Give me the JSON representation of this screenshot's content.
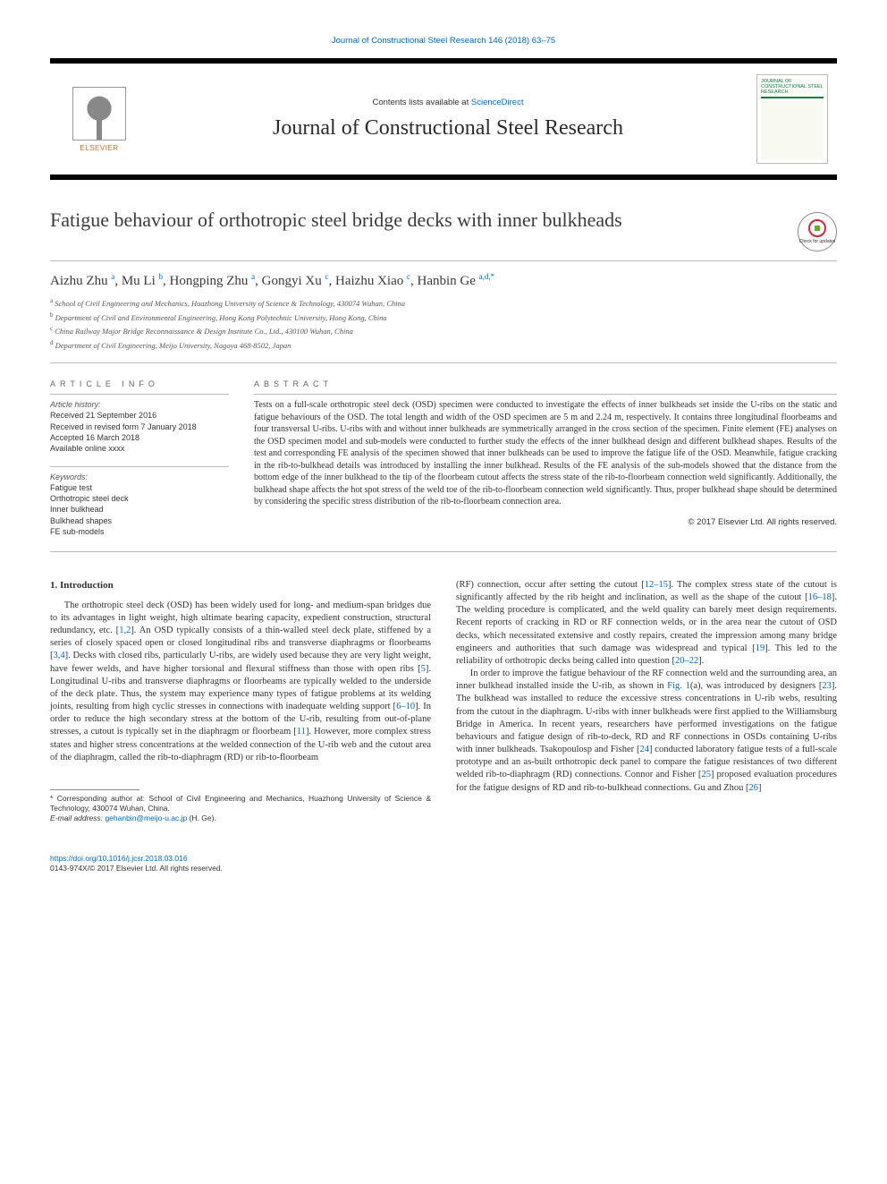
{
  "header": {
    "top_link": "Journal of Constructional Steel Research 146 (2018) 63–75",
    "contents_prefix": "Contents lists available at ",
    "contents_link": "ScienceDirect",
    "journal_name": "Journal of Constructional Steel Research",
    "publisher_label": "ELSEVIER",
    "cover_title": "JOURNAL OF CONSTRUCTIONAL STEEL RESEARCH",
    "check_updates": "Check for updates"
  },
  "article": {
    "title": "Fatigue behaviour of orthotropic steel bridge decks with inner bulkheads",
    "authors_html": "Aizhu Zhu <sup>a</sup>, Mu Li <sup>b</sup>, Hongping Zhu <sup>a</sup>, Gongyi Xu <sup>c</sup>, Haizhu Xiao <sup>c</sup>, Hanbin Ge <sup>a,d,*</sup>",
    "affiliations": [
      {
        "sup": "a",
        "text": "School of Civil Engineering and Mechanics, Huazhong University of Science & Technology, 430074 Wuhan, China"
      },
      {
        "sup": "b",
        "text": "Department of Civil and Environmental Engineering, Hong Kong Polytechnic University, Hong Kong, China"
      },
      {
        "sup": "c",
        "text": "China Railway Major Bridge Reconnaissance & Design Institute Co., Ltd., 430100 Wuhan, China"
      },
      {
        "sup": "d",
        "text": "Department of Civil Engineering, Meijo University, Nagoya 468-8502, Japan"
      }
    ]
  },
  "meta": {
    "info_heading": "article info",
    "history_label": "Article history:",
    "history": [
      "Received 21 September 2016",
      "Received in revised form 7 January 2018",
      "Accepted 16 March 2018",
      "Available online xxxx"
    ],
    "keywords_label": "Keywords:",
    "keywords": [
      "Fatigue test",
      "Orthotropic steel deck",
      "Inner bulkhead",
      "Bulkhead shapes",
      "FE sub-models"
    ]
  },
  "abstract": {
    "heading": "abstract",
    "body": "Tests on a full-scale orthotropic steel deck (OSD) specimen were conducted to investigate the effects of inner bulkheads set inside the U-ribs on the static and fatigue behaviours of the OSD. The total length and width of the OSD specimen are 5 m and 2.24 m, respectively. It contains three longitudinal floorbeams and four transversal U-ribs. U-ribs with and without inner bulkheads are symmetrically arranged in the cross section of the specimen. Finite element (FE) analyses on the OSD specimen model and sub-models were conducted to further study the effects of the inner bulkhead design and different bulkhead shapes. Results of the test and corresponding FE analysis of the specimen showed that inner bulkheads can be used to improve the fatigue life of the OSD. Meanwhile, fatigue cracking in the rib-to-bulkhead details was introduced by installing the inner bulkhead. Results of the FE analysis of the sub-models showed that the distance from the bottom edge of the inner bulkhead to the tip of the floorbeam cutout affects the stress state of the rib-to-floorbeam connection weld significantly. Additionally, the bulkhead shape affects the hot spot stress of the weld toe of the rib-to-floorbeam connection weld significantly. Thus, proper bulkhead shape should be determined by considering the specific stress distribution of the rib-to-floorbeam connection area.",
    "copyright": "© 2017 Elsevier Ltd. All rights reserved."
  },
  "intro": {
    "heading": "1. Introduction",
    "para1": "The orthotropic steel deck (OSD) has been widely used for long- and medium-span bridges due to its advantages in light weight, high ultimate bearing capacity, expedient construction, structural redundancy, etc. [1,2]. An OSD typically consists of a thin-walled steel deck plate, stiffened by a series of closely spaced open or closed longitudinal ribs and transverse diaphragms or floorbeams [3,4]. Decks with closed ribs, particularly U-ribs, are widely used because they are very light weight, have fewer welds, and have higher torsional and flexural stiffness than those with open ribs [5]. Longitudinal U-ribs and transverse diaphragms or floorbeams are typically welded to the underside of the deck plate. Thus, the system may experience many types of fatigue problems at its welding joints, resulting from high cyclic stresses in connections with inadequate welding support [6–10]. In order to reduce the high secondary stress at the bottom of the U-rib, resulting from out-of-plane stresses, a cutout is typically set in the diaphragm or floorbeam [11]. However, more complex stress states and higher stress concentrations at the welded connection of the U-rib web and the cutout area of the diaphragm, called the rib-to-diaphragm (RD) or rib-to-floorbeam",
    "para2a": "(RF) connection, occur after setting the cutout [12–15]. The complex stress state of the cutout is significantly affected by the rib height and inclination, as well as the shape of the cutout [16–18]. The welding procedure is complicated, and the weld quality can barely meet design requirements. Recent reports of cracking in RD or RF connection welds, or in the area near the cutout of OSD decks, which necessitated extensive and costly repairs, created the impression among many bridge engineers and authorities that such damage was widespread and typical [19]. This led to the reliability of orthotropic decks being called into question [20–22].",
    "para2b": "In order to improve the fatigue behaviour of the RF connection weld and the surrounding area, an inner bulkhead installed inside the U-rib, as shown in Fig. 1(a), was introduced by designers [23]. The bulkhead was installed to reduce the excessive stress concentrations in U-rib webs, resulting from the cutout in the diaphragm. U-ribs with inner bulkheads were first applied to the Williamsburg Bridge in America. In recent years, researchers have performed investigations on the fatigue behaviours and fatigue design of rib-to-deck, RD and RF connections in OSDs containing U-ribs with inner bulkheads. Tsakopoulosp and Fisher [24] conducted laboratory fatigue tests of a full-scale prototype and an as-built orthotropic deck panel to compare the fatigue resistances of two different welded rib-to-diaphragm (RD) connections. Connor and Fisher [25] proposed evaluation procedures for the fatigue designs of RD and rib-to-bulkhead connections. Gu and Zhou [26]"
  },
  "footnotes": {
    "corr_label": "* Corresponding author at:",
    "corr_text": "School of Civil Engineering and Mechanics, Huazhong University of Science & Technology, 430074 Wuhan, China.",
    "email_label": "E-mail address:",
    "email": "gehanbin@meijo-u.ac.jp",
    "email_suffix": " (H. Ge)."
  },
  "footer": {
    "doi": "https://doi.org/10.1016/j.jcsr.2018.03.016",
    "issn_line": "0143-974X/© 2017 Elsevier Ltd. All rights reserved."
  },
  "refs": {
    "r1": "1,2",
    "r2": "3,4",
    "r3": "5",
    "r4": "6–10",
    "r5": "11",
    "r6": "12–15",
    "r7": "16–18",
    "r8": "19",
    "r9": "20–22",
    "r10": "Fig. 1",
    "r11": "23",
    "r12": "24",
    "r13": "25",
    "r14": "26"
  },
  "style": {
    "link_color": "#0066cc",
    "border_color": "#bbbbbb",
    "rule_color": "#000000",
    "text_color": "#333333"
  }
}
